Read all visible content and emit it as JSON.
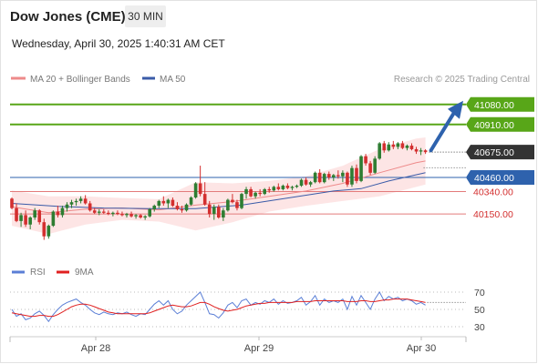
{
  "header": {
    "title": "Dow Jones (CME)",
    "interval": "30 MIN",
    "datetime": "Wednesday, April 30, 2025 1:40:31 AM CET"
  },
  "legend": {
    "ma20": "MA 20 + Bollinger Bands",
    "ma50": "MA 50",
    "credit": "Research © 2025 Trading Central"
  },
  "rsi_legend": {
    "rsi": "RSI",
    "ma": "9MA"
  },
  "colors": {
    "up_candle": "#2e7d32",
    "down_candle": "#d32f2f",
    "resistance": "#58a618",
    "support": "#e37b7b",
    "pivot": "#2e62ad",
    "price_tag": "#333333",
    "ma20": "#ee8a8a",
    "ma50": "#3a5ba8",
    "band_fill": "#fcdede",
    "arrow": "#2e62ad"
  },
  "chart_data": [
    {
      "type": "candlestick",
      "title": "Dow Jones (CME)",
      "ylim": [
        40000,
        41150
      ],
      "x_ticks": [
        "Apr 28",
        "Apr 29",
        "Apr 30"
      ],
      "levels": [
        {
          "label": "41080.00",
          "value": 41080,
          "kind": "resistance"
        },
        {
          "label": "40910.00",
          "value": 40910,
          "kind": "resistance"
        },
        {
          "label": "40675.00",
          "value": 40675,
          "kind": "current"
        },
        {
          "label": "40460.00",
          "value": 40460,
          "kind": "pivot"
        },
        {
          "label": "40340.00",
          "value": 40340,
          "kind": "support"
        },
        {
          "label": "40150.00",
          "value": 40150,
          "kind": "support"
        }
      ],
      "candles": [
        [
          40280,
          40290,
          40190,
          40200
        ],
        [
          40200,
          40240,
          40080,
          40090
        ],
        [
          40090,
          40160,
          40040,
          40140
        ],
        [
          40140,
          40180,
          40040,
          40060
        ],
        [
          40060,
          40130,
          40020,
          40120
        ],
        [
          40120,
          40200,
          40100,
          40180
        ],
        [
          40180,
          40190,
          40060,
          40080
        ],
        [
          40080,
          40110,
          39930,
          39960
        ],
        [
          39960,
          40060,
          39940,
          40050
        ],
        [
          40050,
          40180,
          40040,
          40170
        ],
        [
          40170,
          40220,
          40120,
          40140
        ],
        [
          40140,
          40220,
          40120,
          40200
        ],
        [
          40200,
          40250,
          40170,
          40230
        ],
        [
          40230,
          40270,
          40200,
          40250
        ],
        [
          40250,
          40280,
          40220,
          40260
        ],
        [
          40260,
          40300,
          40240,
          40280
        ],
        [
          40280,
          40310,
          40230,
          40240
        ],
        [
          40240,
          40260,
          40170,
          40180
        ],
        [
          40180,
          40200,
          40150,
          40160
        ],
        [
          40160,
          40190,
          40140,
          40170
        ],
        [
          40170,
          40190,
          40150,
          40160
        ],
        [
          40160,
          40180,
          40140,
          40150
        ],
        [
          40150,
          40170,
          40130,
          40160
        ],
        [
          40160,
          40180,
          40140,
          40150
        ],
        [
          40150,
          40170,
          40130,
          40140
        ],
        [
          40140,
          40160,
          40120,
          40150
        ],
        [
          40150,
          40170,
          40120,
          40130
        ],
        [
          40130,
          40150,
          40110,
          40140
        ],
        [
          40140,
          40150,
          40110,
          40120
        ],
        [
          40120,
          40140,
          40100,
          40130
        ],
        [
          40130,
          40200,
          40120,
          40190
        ],
        [
          40190,
          40230,
          40170,
          40220
        ],
        [
          40220,
          40270,
          40200,
          40260
        ],
        [
          40260,
          40300,
          40220,
          40240
        ],
        [
          40240,
          40280,
          40200,
          40270
        ],
        [
          40270,
          40290,
          40210,
          40220
        ],
        [
          40220,
          40250,
          40180,
          40190
        ],
        [
          40190,
          40220,
          40160,
          40180
        ],
        [
          40180,
          40240,
          40170,
          40230
        ],
        [
          40230,
          40300,
          40220,
          40290
        ],
        [
          40290,
          40420,
          40280,
          40410
        ],
        [
          40410,
          40560,
          40300,
          40320
        ],
        [
          40320,
          40420,
          40220,
          40230
        ],
        [
          40230,
          40260,
          40120,
          40150
        ],
        [
          40150,
          40230,
          40100,
          40210
        ],
        [
          40210,
          40230,
          40110,
          40120
        ],
        [
          40120,
          40200,
          40090,
          40180
        ],
        [
          40180,
          40280,
          40170,
          40270
        ],
        [
          40270,
          40320,
          40240,
          40250
        ],
        [
          40250,
          40270,
          40180,
          40200
        ],
        [
          40200,
          40330,
          40190,
          40320
        ],
        [
          40320,
          40380,
          40280,
          40360
        ],
        [
          40360,
          40380,
          40290,
          40300
        ],
        [
          40300,
          40340,
          40280,
          40330
        ],
        [
          40330,
          40360,
          40300,
          40320
        ],
        [
          40320,
          40370,
          40310,
          40360
        ],
        [
          40360,
          40380,
          40330,
          40350
        ],
        [
          40350,
          40390,
          40340,
          40380
        ],
        [
          40380,
          40410,
          40350,
          40360
        ],
        [
          40360,
          40400,
          40350,
          40390
        ],
        [
          40390,
          40410,
          40360,
          40370
        ],
        [
          40370,
          40390,
          40350,
          40380
        ],
        [
          40380,
          40400,
          40370,
          40390
        ],
        [
          40390,
          40450,
          40380,
          40440
        ],
        [
          40440,
          40460,
          40390,
          40400
        ],
        [
          40400,
          40430,
          40380,
          40420
        ],
        [
          40420,
          40510,
          40410,
          40500
        ],
        [
          40500,
          40530,
          40410,
          40420
        ],
        [
          40420,
          40500,
          40410,
          40490
        ],
        [
          40490,
          40510,
          40440,
          40460
        ],
        [
          40460,
          40490,
          40430,
          40480
        ],
        [
          40480,
          40520,
          40450,
          40470
        ],
        [
          40470,
          40520,
          40420,
          40500
        ],
        [
          40500,
          40510,
          40380,
          40400
        ],
        [
          40400,
          40560,
          40380,
          40540
        ],
        [
          40540,
          40570,
          40410,
          40430
        ],
        [
          40430,
          40650,
          40420,
          40640
        ],
        [
          40640,
          40660,
          40560,
          40580
        ],
        [
          40580,
          40600,
          40480,
          40500
        ],
        [
          40500,
          40640,
          40490,
          40620
        ],
        [
          40620,
          40760,
          40610,
          40750
        ],
        [
          40750,
          40770,
          40670,
          40690
        ],
        [
          40690,
          40760,
          40680,
          40740
        ],
        [
          40740,
          40770,
          40700,
          40720
        ],
        [
          40720,
          40760,
          40700,
          40750
        ],
        [
          40750,
          40770,
          40700,
          40710
        ],
        [
          40710,
          40740,
          40690,
          40730
        ],
        [
          40730,
          40750,
          40690,
          40700
        ],
        [
          40700,
          40720,
          40660,
          40680
        ],
        [
          40680,
          40710,
          40650,
          40690
        ],
        [
          40690,
          40700,
          40660,
          40675
        ]
      ],
      "ma20": [
        [
          0,
          40210
        ],
        [
          8,
          40160
        ],
        [
          16,
          40190
        ],
        [
          24,
          40200
        ],
        [
          32,
          40185
        ],
        [
          40,
          40225
        ],
        [
          48,
          40255
        ],
        [
          56,
          40300
        ],
        [
          64,
          40345
        ],
        [
          72,
          40410
        ],
        [
          80,
          40500
        ],
        [
          88,
          40585
        ],
        [
          90,
          40600
        ]
      ],
      "ma50": [
        [
          0,
          40240
        ],
        [
          10,
          40215
        ],
        [
          20,
          40200
        ],
        [
          30,
          40195
        ],
        [
          40,
          40195
        ],
        [
          50,
          40225
        ],
        [
          60,
          40285
        ],
        [
          70,
          40345
        ],
        [
          76,
          40365
        ],
        [
          82,
          40430
        ],
        [
          90,
          40500
        ]
      ],
      "bollinger_upper": [
        [
          0,
          40350
        ],
        [
          8,
          40300
        ],
        [
          16,
          40300
        ],
        [
          24,
          40285
        ],
        [
          32,
          40275
        ],
        [
          40,
          40420
        ],
        [
          48,
          40410
        ],
        [
          56,
          40430
        ],
        [
          64,
          40470
        ],
        [
          72,
          40560
        ],
        [
          80,
          40700
        ],
        [
          88,
          40790
        ],
        [
          90,
          40800
        ]
      ],
      "bollinger_lower": [
        [
          0,
          40050
        ],
        [
          8,
          39980
        ],
        [
          16,
          40060
        ],
        [
          24,
          40100
        ],
        [
          32,
          40085
        ],
        [
          40,
          40010
        ],
        [
          48,
          40080
        ],
        [
          56,
          40170
        ],
        [
          64,
          40220
        ],
        [
          72,
          40260
        ],
        [
          80,
          40300
        ],
        [
          88,
          40380
        ],
        [
          90,
          40400
        ]
      ],
      "forecast_arrow": {
        "from": 40690,
        "to": 41080
      }
    },
    {
      "type": "line",
      "series": [
        {
          "name": "RSI",
          "values": [
            50,
            42,
            45,
            38,
            40,
            45,
            48,
            43,
            36,
            44,
            50,
            55,
            58,
            60,
            62,
            58,
            55,
            50,
            46,
            44,
            47,
            45,
            44,
            46,
            45,
            47,
            44,
            42,
            45,
            44,
            50,
            56,
            60,
            55,
            60,
            50,
            45,
            48,
            55,
            60,
            65,
            70,
            58,
            45,
            44,
            40,
            46,
            55,
            58,
            52,
            60,
            62,
            55,
            58,
            56,
            60,
            58,
            62,
            56,
            60,
            57,
            58,
            60,
            64,
            55,
            59,
            66,
            55,
            62,
            58,
            60,
            58,
            62,
            50,
            65,
            55,
            66,
            58,
            50,
            62,
            70,
            60,
            65,
            62,
            64,
            60,
            62,
            60,
            56,
            58,
            55
          ]
        },
        {
          "name": "9MA",
          "values": [
            46,
            45,
            44,
            43,
            42,
            42,
            43,
            43,
            42,
            42,
            44,
            47,
            50,
            53,
            55,
            56,
            56,
            55,
            53,
            51,
            49,
            47,
            46,
            45,
            45,
            45,
            45,
            45,
            45,
            45,
            46,
            48,
            50,
            52,
            54,
            55,
            54,
            53,
            53,
            54,
            56,
            58,
            58,
            56,
            53,
            51,
            49,
            48,
            49,
            50,
            52,
            54,
            55,
            56,
            57,
            57,
            58,
            58,
            58,
            58,
            58,
            58,
            59,
            59,
            59,
            59,
            60,
            60,
            60,
            60,
            60,
            60,
            60,
            59,
            59,
            59,
            60,
            60,
            59,
            59,
            60,
            61,
            61,
            62,
            62,
            62,
            62,
            61,
            60,
            59,
            58
          ]
        }
      ],
      "ylim": [
        20,
        80
      ],
      "y_ticks": [
        70,
        50,
        30
      ]
    }
  ]
}
